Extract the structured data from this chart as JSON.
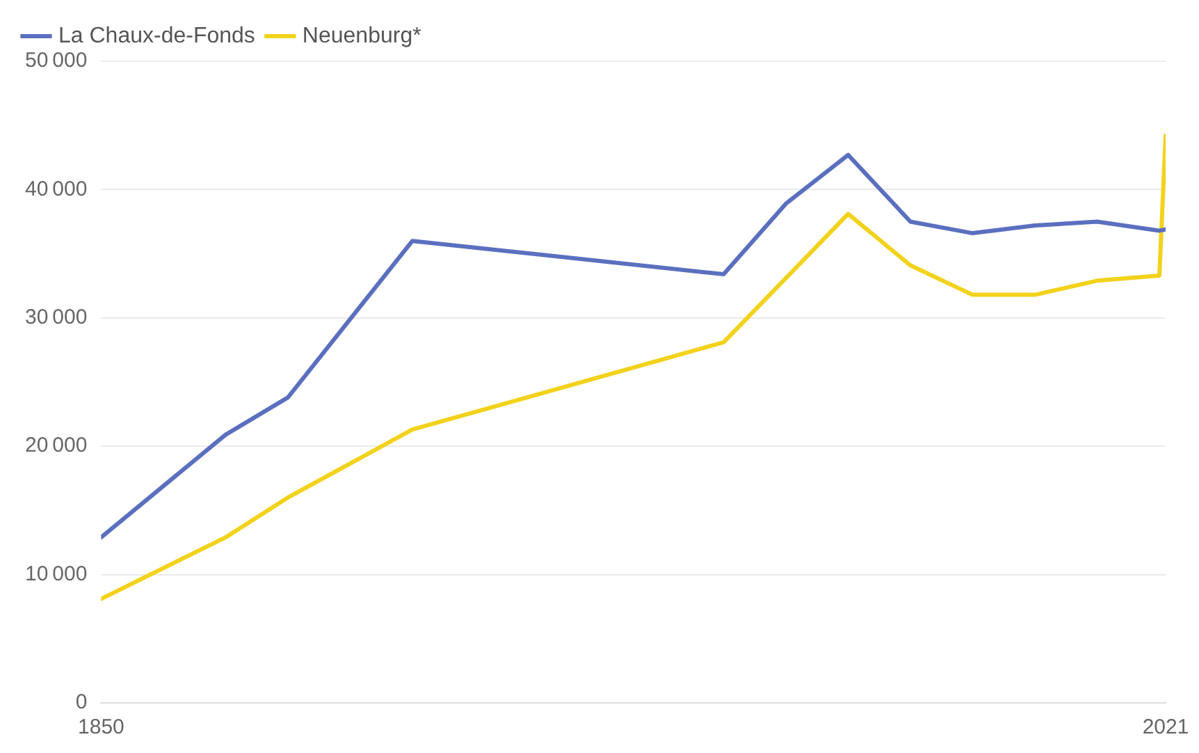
{
  "chart_data": {
    "type": "line",
    "x": [
      1850,
      1870,
      1880,
      1900,
      1950,
      1960,
      1970,
      1980,
      1990,
      2000,
      2010,
      2020,
      2021
    ],
    "series": [
      {
        "name": "La Chaux-de-Fonds",
        "color": "#5b6fbf",
        "values": [
          12900,
          20900,
          23800,
          36000,
          33400,
          38900,
          42700,
          37500,
          36600,
          37200,
          37500,
          36800,
          36900
        ]
      },
      {
        "name": "Neuenburg*",
        "color": "#f2d21b",
        "values": [
          8100,
          12900,
          16000,
          21300,
          28100,
          33100,
          38100,
          34100,
          31800,
          31800,
          32900,
          33300,
          44200
        ]
      }
    ],
    "xlim": [
      1850,
      2021
    ],
    "xticks": [
      1850,
      2021
    ],
    "ylim": [
      0,
      50000
    ],
    "yticks": [
      0,
      10000,
      20000,
      30000,
      40000,
      50000
    ],
    "grid": "y",
    "legend": "top left",
    "marker": "none",
    "line_style": "solid"
  }
}
